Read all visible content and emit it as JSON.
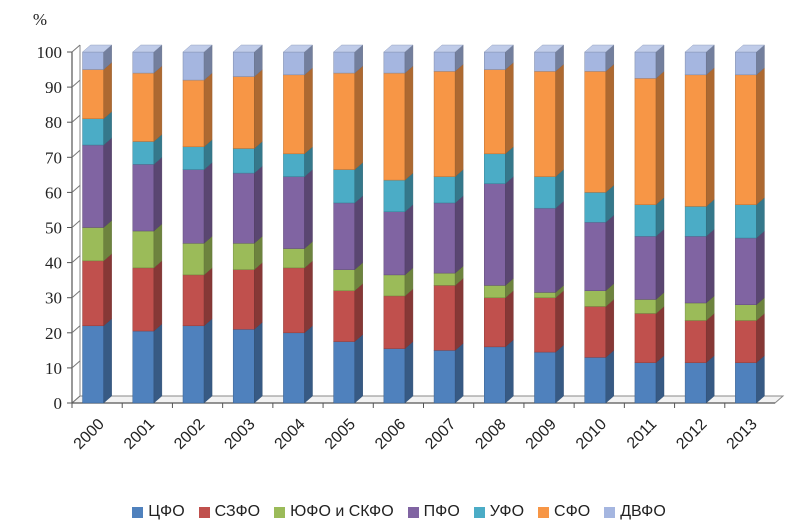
{
  "chart_data": {
    "type": "bar",
    "stacked": true,
    "unit_label": "%",
    "categories": [
      "2000",
      "2001",
      "2002",
      "2003",
      "2004",
      "2005",
      "2006",
      "2007",
      "2008",
      "2009",
      "2010",
      "2011",
      "2012",
      "2013"
    ],
    "ylim": [
      0,
      100
    ],
    "yticks": [
      "0",
      "10",
      "20",
      "30",
      "40",
      "50",
      "60",
      "70",
      "80",
      "90",
      "100"
    ],
    "legend_position": "bottom",
    "series": [
      {
        "name": "ЦФО",
        "color": "#4f81bd",
        "values": [
          22,
          20.5,
          22,
          21,
          20,
          17.5,
          15.5,
          15,
          16,
          14.5,
          13,
          11.5,
          11.5,
          11.5
        ]
      },
      {
        "name": "СЗФО",
        "color": "#c0504d",
        "values": [
          18.5,
          18,
          14.5,
          17,
          18.5,
          14.5,
          15,
          18.5,
          14,
          15.5,
          14.5,
          14,
          12,
          12
        ]
      },
      {
        "name": "ЮФО и СКФО",
        "color": "#9bbb59",
        "values": [
          9.5,
          10.5,
          9,
          7.5,
          5.5,
          6,
          6,
          3.5,
          3.5,
          1.5,
          4.5,
          4,
          5,
          4.5
        ]
      },
      {
        "name": "ПФО",
        "color": "#8064a2",
        "values": [
          23.5,
          19,
          21,
          20,
          20.5,
          19,
          18,
          20,
          29,
          24,
          19.5,
          18,
          19,
          19
        ]
      },
      {
        "name": "УФО",
        "color": "#4bacc6",
        "values": [
          7.5,
          6.5,
          6.5,
          7,
          6.5,
          9.5,
          9,
          7.5,
          8.5,
          9,
          8.5,
          9,
          8.5,
          9.5
        ]
      },
      {
        "name": "СФО",
        "color": "#f79646",
        "values": [
          14,
          19.5,
          19,
          20.5,
          22.5,
          27.5,
          30.5,
          30,
          24,
          30,
          34.5,
          36,
          37.5,
          37
        ]
      },
      {
        "name": "ДВФО",
        "color": "#a5b6e0",
        "values": [
          5,
          6,
          8,
          7,
          6.5,
          6,
          6,
          5.5,
          5,
          5.5,
          5.5,
          7.5,
          6.5,
          6.5
        ]
      }
    ]
  }
}
